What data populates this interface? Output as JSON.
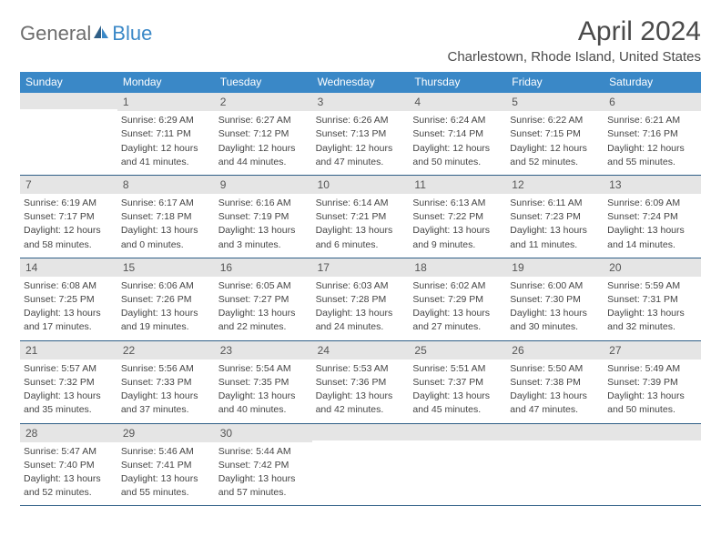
{
  "brand": {
    "part1": "General",
    "part2": "Blue"
  },
  "title": "April 2024",
  "location": "Charlestown, Rhode Island, United States",
  "colors": {
    "accent": "#3a88c7",
    "header_text": "#ffffff",
    "daynum_bg": "#e5e5e5",
    "body_text": "#444444",
    "rule": "#2f5f87",
    "logo_gray": "#6d6d6d"
  },
  "day_names": [
    "Sunday",
    "Monday",
    "Tuesday",
    "Wednesday",
    "Thursday",
    "Friday",
    "Saturday"
  ],
  "weeks": [
    [
      null,
      {
        "n": "1",
        "sr": "Sunrise: 6:29 AM",
        "ss": "Sunset: 7:11 PM",
        "d1": "Daylight: 12 hours",
        "d2": "and 41 minutes."
      },
      {
        "n": "2",
        "sr": "Sunrise: 6:27 AM",
        "ss": "Sunset: 7:12 PM",
        "d1": "Daylight: 12 hours",
        "d2": "and 44 minutes."
      },
      {
        "n": "3",
        "sr": "Sunrise: 6:26 AM",
        "ss": "Sunset: 7:13 PM",
        "d1": "Daylight: 12 hours",
        "d2": "and 47 minutes."
      },
      {
        "n": "4",
        "sr": "Sunrise: 6:24 AM",
        "ss": "Sunset: 7:14 PM",
        "d1": "Daylight: 12 hours",
        "d2": "and 50 minutes."
      },
      {
        "n": "5",
        "sr": "Sunrise: 6:22 AM",
        "ss": "Sunset: 7:15 PM",
        "d1": "Daylight: 12 hours",
        "d2": "and 52 minutes."
      },
      {
        "n": "6",
        "sr": "Sunrise: 6:21 AM",
        "ss": "Sunset: 7:16 PM",
        "d1": "Daylight: 12 hours",
        "d2": "and 55 minutes."
      }
    ],
    [
      {
        "n": "7",
        "sr": "Sunrise: 6:19 AM",
        "ss": "Sunset: 7:17 PM",
        "d1": "Daylight: 12 hours",
        "d2": "and 58 minutes."
      },
      {
        "n": "8",
        "sr": "Sunrise: 6:17 AM",
        "ss": "Sunset: 7:18 PM",
        "d1": "Daylight: 13 hours",
        "d2": "and 0 minutes."
      },
      {
        "n": "9",
        "sr": "Sunrise: 6:16 AM",
        "ss": "Sunset: 7:19 PM",
        "d1": "Daylight: 13 hours",
        "d2": "and 3 minutes."
      },
      {
        "n": "10",
        "sr": "Sunrise: 6:14 AM",
        "ss": "Sunset: 7:21 PM",
        "d1": "Daylight: 13 hours",
        "d2": "and 6 minutes."
      },
      {
        "n": "11",
        "sr": "Sunrise: 6:13 AM",
        "ss": "Sunset: 7:22 PM",
        "d1": "Daylight: 13 hours",
        "d2": "and 9 minutes."
      },
      {
        "n": "12",
        "sr": "Sunrise: 6:11 AM",
        "ss": "Sunset: 7:23 PM",
        "d1": "Daylight: 13 hours",
        "d2": "and 11 minutes."
      },
      {
        "n": "13",
        "sr": "Sunrise: 6:09 AM",
        "ss": "Sunset: 7:24 PM",
        "d1": "Daylight: 13 hours",
        "d2": "and 14 minutes."
      }
    ],
    [
      {
        "n": "14",
        "sr": "Sunrise: 6:08 AM",
        "ss": "Sunset: 7:25 PM",
        "d1": "Daylight: 13 hours",
        "d2": "and 17 minutes."
      },
      {
        "n": "15",
        "sr": "Sunrise: 6:06 AM",
        "ss": "Sunset: 7:26 PM",
        "d1": "Daylight: 13 hours",
        "d2": "and 19 minutes."
      },
      {
        "n": "16",
        "sr": "Sunrise: 6:05 AM",
        "ss": "Sunset: 7:27 PM",
        "d1": "Daylight: 13 hours",
        "d2": "and 22 minutes."
      },
      {
        "n": "17",
        "sr": "Sunrise: 6:03 AM",
        "ss": "Sunset: 7:28 PM",
        "d1": "Daylight: 13 hours",
        "d2": "and 24 minutes."
      },
      {
        "n": "18",
        "sr": "Sunrise: 6:02 AM",
        "ss": "Sunset: 7:29 PM",
        "d1": "Daylight: 13 hours",
        "d2": "and 27 minutes."
      },
      {
        "n": "19",
        "sr": "Sunrise: 6:00 AM",
        "ss": "Sunset: 7:30 PM",
        "d1": "Daylight: 13 hours",
        "d2": "and 30 minutes."
      },
      {
        "n": "20",
        "sr": "Sunrise: 5:59 AM",
        "ss": "Sunset: 7:31 PM",
        "d1": "Daylight: 13 hours",
        "d2": "and 32 minutes."
      }
    ],
    [
      {
        "n": "21",
        "sr": "Sunrise: 5:57 AM",
        "ss": "Sunset: 7:32 PM",
        "d1": "Daylight: 13 hours",
        "d2": "and 35 minutes."
      },
      {
        "n": "22",
        "sr": "Sunrise: 5:56 AM",
        "ss": "Sunset: 7:33 PM",
        "d1": "Daylight: 13 hours",
        "d2": "and 37 minutes."
      },
      {
        "n": "23",
        "sr": "Sunrise: 5:54 AM",
        "ss": "Sunset: 7:35 PM",
        "d1": "Daylight: 13 hours",
        "d2": "and 40 minutes."
      },
      {
        "n": "24",
        "sr": "Sunrise: 5:53 AM",
        "ss": "Sunset: 7:36 PM",
        "d1": "Daylight: 13 hours",
        "d2": "and 42 minutes."
      },
      {
        "n": "25",
        "sr": "Sunrise: 5:51 AM",
        "ss": "Sunset: 7:37 PM",
        "d1": "Daylight: 13 hours",
        "d2": "and 45 minutes."
      },
      {
        "n": "26",
        "sr": "Sunrise: 5:50 AM",
        "ss": "Sunset: 7:38 PM",
        "d1": "Daylight: 13 hours",
        "d2": "and 47 minutes."
      },
      {
        "n": "27",
        "sr": "Sunrise: 5:49 AM",
        "ss": "Sunset: 7:39 PM",
        "d1": "Daylight: 13 hours",
        "d2": "and 50 minutes."
      }
    ],
    [
      {
        "n": "28",
        "sr": "Sunrise: 5:47 AM",
        "ss": "Sunset: 7:40 PM",
        "d1": "Daylight: 13 hours",
        "d2": "and 52 minutes."
      },
      {
        "n": "29",
        "sr": "Sunrise: 5:46 AM",
        "ss": "Sunset: 7:41 PM",
        "d1": "Daylight: 13 hours",
        "d2": "and 55 minutes."
      },
      {
        "n": "30",
        "sr": "Sunrise: 5:44 AM",
        "ss": "Sunset: 7:42 PM",
        "d1": "Daylight: 13 hours",
        "d2": "and 57 minutes."
      },
      null,
      null,
      null,
      null
    ]
  ]
}
